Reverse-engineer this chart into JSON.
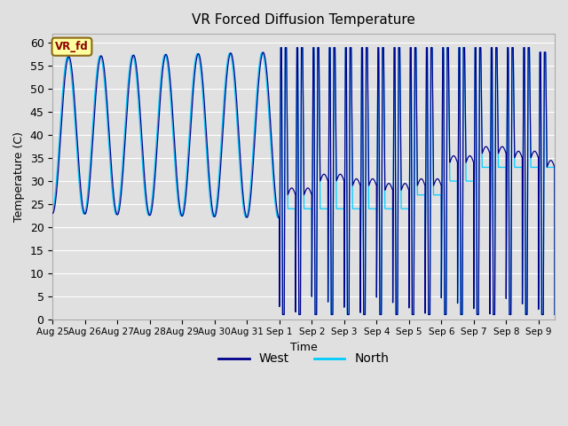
{
  "title": "VR Forced Diffusion Temperature",
  "xlabel": "Time",
  "ylabel": "Temperature (C)",
  "ylim": [
    0,
    62
  ],
  "yticks": [
    0,
    5,
    10,
    15,
    20,
    25,
    30,
    35,
    40,
    45,
    50,
    55,
    60
  ],
  "west_color": "#00008B",
  "north_color": "#00CCFF",
  "annotation_text": "VR_fd",
  "annotation_bg": "#FFFFA0",
  "annotation_border": "#8B6914",
  "annotation_text_color": "#8B0000",
  "legend_west": "West",
  "legend_north": "North",
  "x_tick_labels": [
    "Aug 25",
    "Aug 26",
    "Aug 27",
    "Aug 28",
    "Aug 29",
    "Aug 30",
    "Aug 31",
    "Sep 1",
    "Sep 2",
    "Sep 3",
    "Sep 4",
    "Sep 5",
    "Sep 6",
    "Sep 7",
    "Sep 8",
    "Sep 9"
  ],
  "background_color": "#E0E0E0",
  "grid_color": "#FFFFFF",
  "total_days": 15.5,
  "figsize": [
    6.4,
    4.8
  ],
  "dpi": 100
}
